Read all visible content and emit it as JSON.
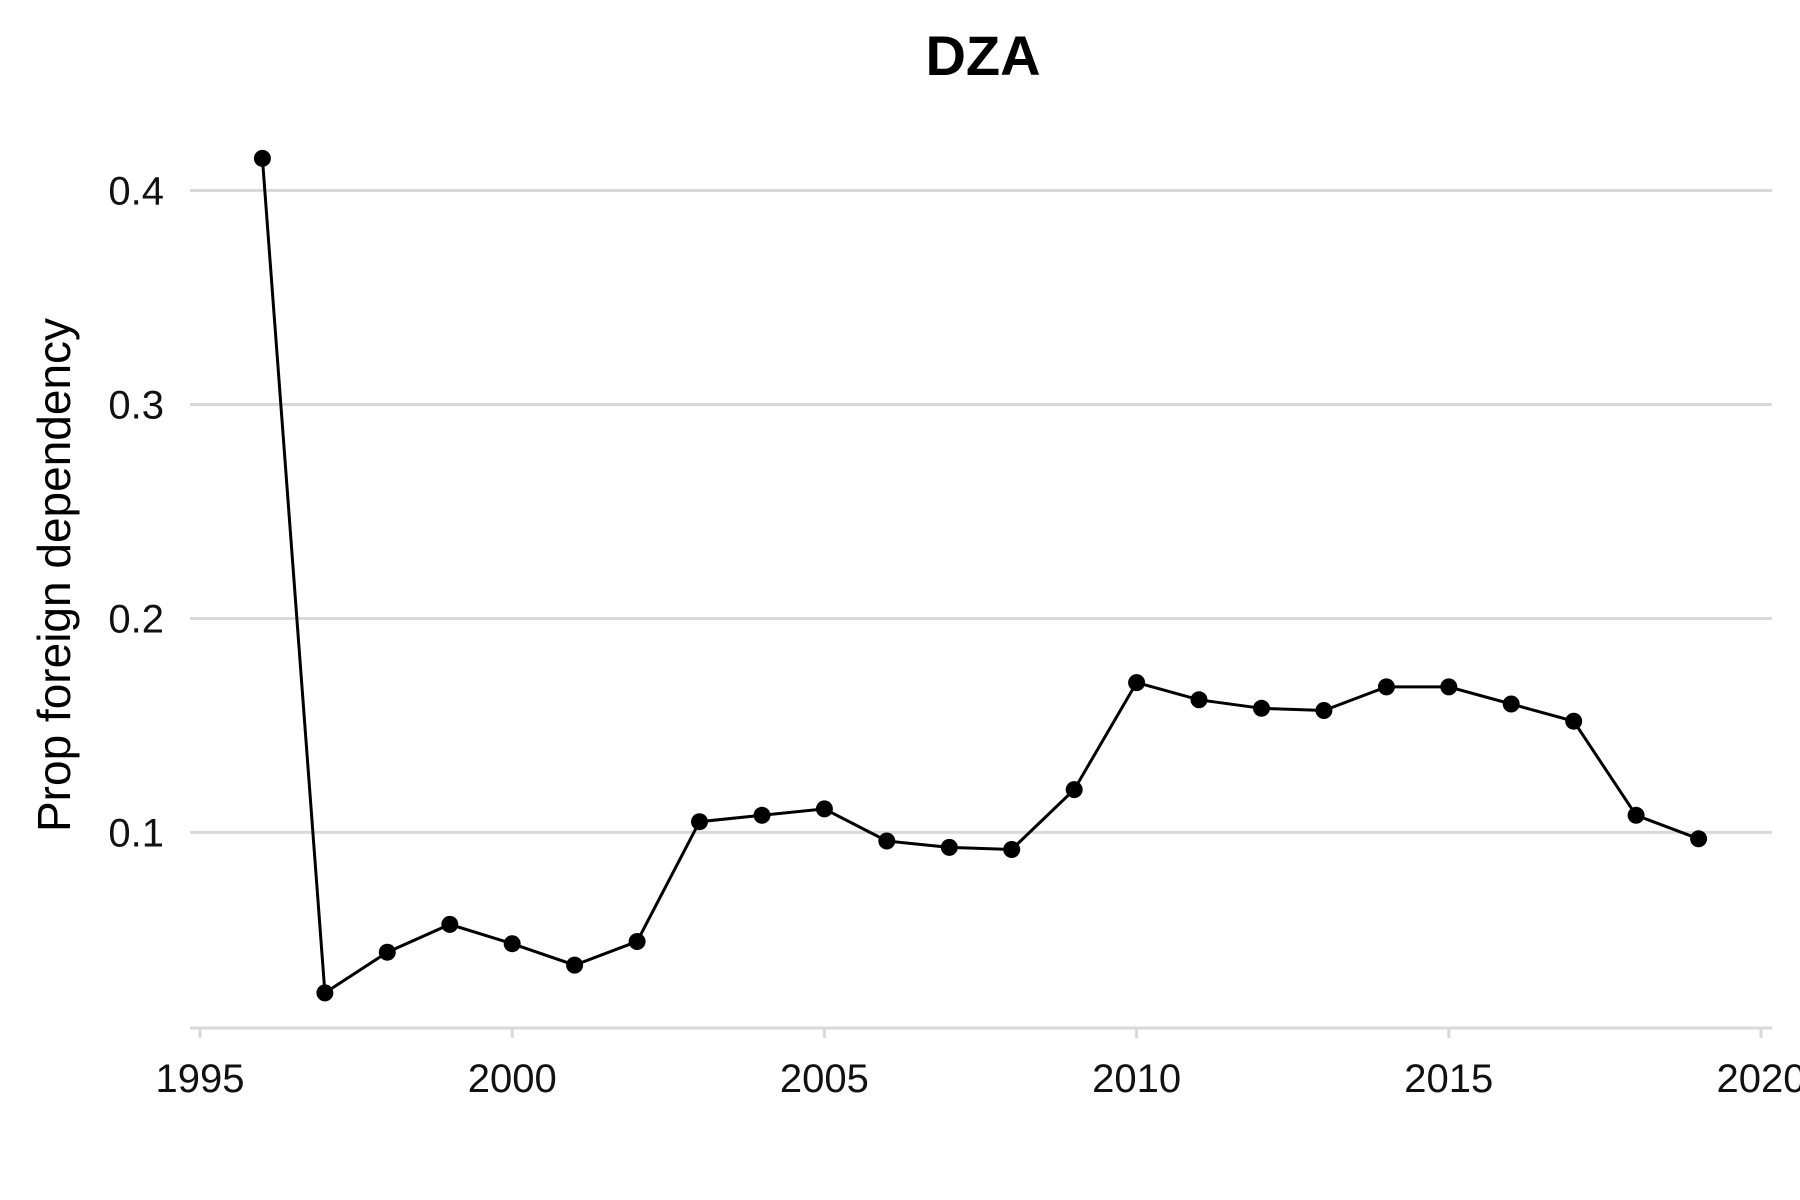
{
  "chart_data": {
    "type": "line",
    "title": "DZA",
    "xlabel": "",
    "ylabel": "Prop foreign dependency",
    "xlim": [
      1995,
      2020
    ],
    "ylim": [
      0.01,
      0.425
    ],
    "x_ticks": [
      1995,
      2000,
      2005,
      2010,
      2015,
      2020
    ],
    "y_ticks": [
      0.1,
      0.2,
      0.3,
      0.4
    ],
    "x_tick_labels": [
      "1995",
      "2000",
      "2005",
      "2010",
      "2015",
      "2020"
    ],
    "y_tick_labels": [
      "0.1",
      "0.2",
      "0.3",
      "0.4"
    ],
    "grid": "horizontal",
    "legend": "none",
    "series": [
      {
        "color": "#000000",
        "x": [
          1996,
          1997,
          1998,
          1999,
          2000,
          2001,
          2002,
          2003,
          2004,
          2005,
          2006,
          2007,
          2008,
          2009,
          2010,
          2011,
          2012,
          2013,
          2014,
          2015,
          2016,
          2017,
          2018,
          2019
        ],
        "y": [
          0.415,
          0.025,
          0.044,
          0.057,
          0.048,
          0.038,
          0.049,
          0.105,
          0.108,
          0.111,
          0.096,
          0.093,
          0.092,
          0.12,
          0.17,
          0.162,
          0.158,
          0.157,
          0.168,
          0.168,
          0.16,
          0.152,
          0.108,
          0.097
        ]
      }
    ]
  }
}
